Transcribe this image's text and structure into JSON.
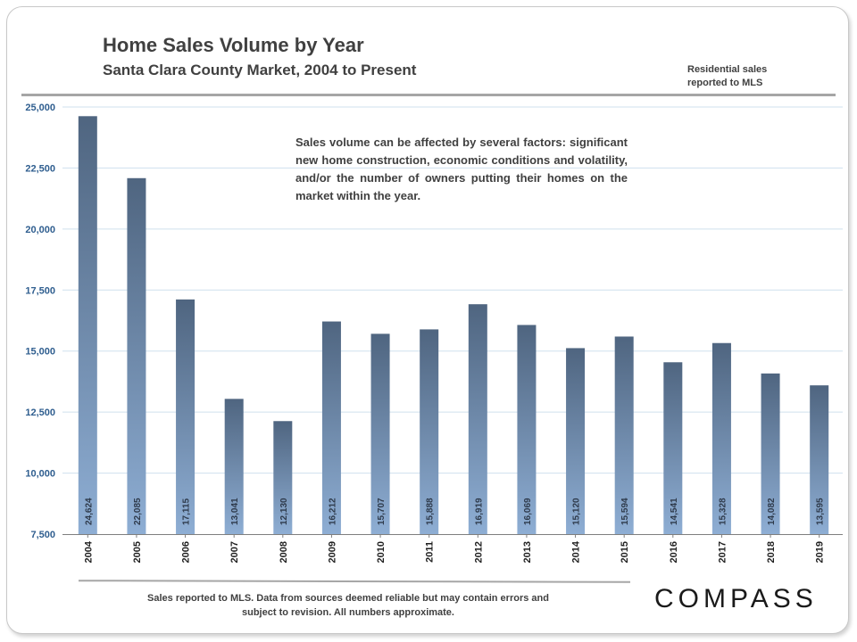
{
  "header": {
    "title": "Home Sales Volume by Year",
    "subtitle": "Santa Clara County Market,  2004 to Present",
    "note": "Residential sales reported to MLS"
  },
  "annotation": "Sales volume can be affected by several factors: significant new home construction, economic conditions and volatility, and/or the number of owners putting their homes on the market within the year.",
  "footer": {
    "disclaimer": "Sales reported to MLS. Data from sources deemed reliable but may contain errors and subject to revision. All numbers approximate.",
    "brand": "COMPASS"
  },
  "colors": {
    "bar_top": "#4f6580",
    "bar_bottom": "#8eaed4",
    "grid": "#cfe0ee",
    "axis_text": "#2f5e8f"
  },
  "chart_data": {
    "type": "bar",
    "title": "Home Sales Volume by Year",
    "xlabel": "",
    "ylabel": "",
    "categories": [
      "2004",
      "2005",
      "2006",
      "2007",
      "2008",
      "2009",
      "2010",
      "2011",
      "2012",
      "2013",
      "2014",
      "2015",
      "2016",
      "2017",
      "2018",
      "2019"
    ],
    "values": [
      24624,
      22085,
      17115,
      13041,
      12130,
      16212,
      15707,
      15888,
      16919,
      16069,
      15120,
      15594,
      14541,
      15328,
      14082,
      13595
    ],
    "value_labels": [
      "24,624",
      "22,085",
      "17,115",
      "13,041",
      "12,130",
      "16,212",
      "15,707",
      "15,888",
      "16,919",
      "16,069",
      "15,120",
      "15,594",
      "14,541",
      "15,328",
      "14,082",
      "13,595"
    ],
    "ylim": [
      7500,
      25000
    ],
    "yticks": [
      7500,
      10000,
      12500,
      15000,
      17500,
      20000,
      22500,
      25000
    ],
    "ytick_labels": [
      "7,500",
      "10,000",
      "12,500",
      "15,000",
      "17,500",
      "20,000",
      "22,500",
      "25,000"
    ],
    "grid": true
  }
}
